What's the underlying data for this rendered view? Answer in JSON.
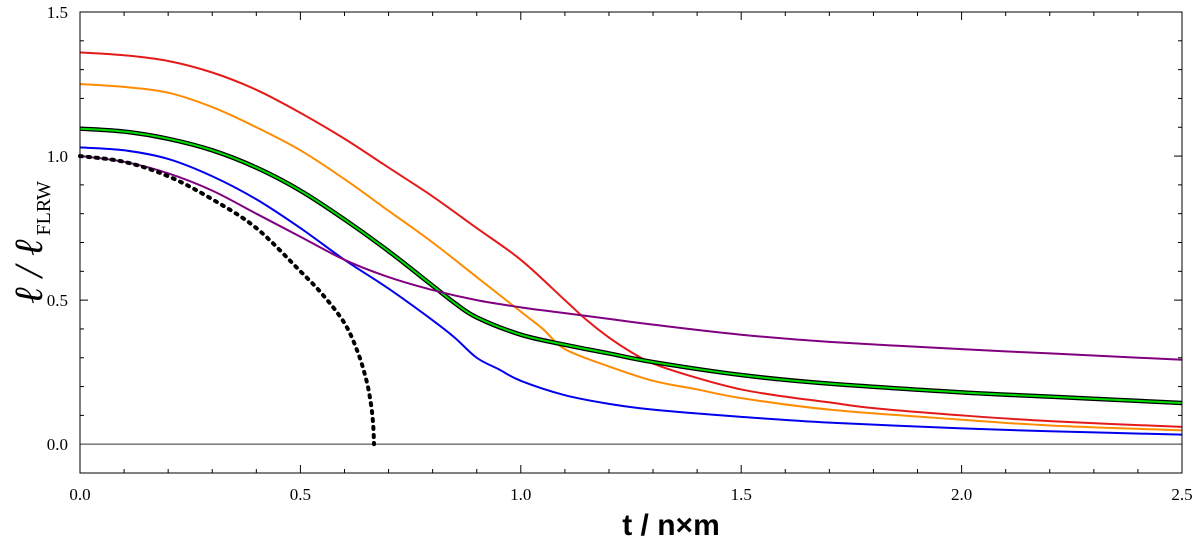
{
  "chart_data": {
    "type": "line",
    "xlabel": "t / n×m",
    "ylabel": {
      "main": "ℓ / ℓ",
      "sub": "FLRW"
    },
    "xlim": [
      0,
      2.5
    ],
    "ylim": [
      -0.1,
      1.5
    ],
    "x_ticks": [
      0.0,
      0.5,
      1.0,
      1.5,
      2.0,
      2.5
    ],
    "x_tick_labels": [
      "0.0",
      "0.5",
      "1.0",
      "1.5",
      "2.0",
      "2.5"
    ],
    "y_ticks": [
      0.0,
      0.5,
      1.0,
      1.5
    ],
    "y_tick_labels": [
      "0.0",
      "0.5",
      "1.0",
      "1.5"
    ],
    "reference_line": {
      "y": 0,
      "color": "#808080"
    },
    "series": [
      {
        "name": "red",
        "color": "#e41a1a",
        "style": "solid",
        "points": [
          [
            0,
            1.36
          ],
          [
            0.1,
            1.35
          ],
          [
            0.2,
            1.33
          ],
          [
            0.3,
            1.29
          ],
          [
            0.4,
            1.23
          ],
          [
            0.5,
            1.15
          ],
          [
            0.6,
            1.06
          ],
          [
            0.7,
            0.96
          ],
          [
            0.8,
            0.86
          ],
          [
            0.9,
            0.75
          ],
          [
            1.0,
            0.64
          ],
          [
            1.1,
            0.5
          ],
          [
            1.15,
            0.43
          ],
          [
            1.2,
            0.37
          ],
          [
            1.25,
            0.32
          ],
          [
            1.3,
            0.28
          ],
          [
            1.4,
            0.23
          ],
          [
            1.5,
            0.19
          ],
          [
            1.6,
            0.165
          ],
          [
            1.7,
            0.145
          ],
          [
            1.8,
            0.125
          ],
          [
            2.0,
            0.1
          ],
          [
            2.2,
            0.08
          ],
          [
            2.5,
            0.06
          ]
        ]
      },
      {
        "name": "orange",
        "color": "#ff8c00",
        "style": "solid",
        "points": [
          [
            0,
            1.25
          ],
          [
            0.1,
            1.24
          ],
          [
            0.2,
            1.22
          ],
          [
            0.3,
            1.17
          ],
          [
            0.4,
            1.1
          ],
          [
            0.5,
            1.02
          ],
          [
            0.6,
            0.92
          ],
          [
            0.7,
            0.81
          ],
          [
            0.8,
            0.7
          ],
          [
            0.9,
            0.58
          ],
          [
            1.0,
            0.46
          ],
          [
            1.05,
            0.4
          ],
          [
            1.1,
            0.33
          ],
          [
            1.2,
            0.27
          ],
          [
            1.3,
            0.22
          ],
          [
            1.4,
            0.19
          ],
          [
            1.5,
            0.16
          ],
          [
            1.7,
            0.12
          ],
          [
            2.0,
            0.085
          ],
          [
            2.2,
            0.065
          ],
          [
            2.5,
            0.048
          ]
        ]
      },
      {
        "name": "green",
        "color": "#00dd00",
        "style": "solid",
        "outline": "#000000",
        "points": [
          [
            0,
            1.095
          ],
          [
            0.1,
            1.085
          ],
          [
            0.2,
            1.06
          ],
          [
            0.3,
            1.02
          ],
          [
            0.4,
            0.96
          ],
          [
            0.5,
            0.88
          ],
          [
            0.6,
            0.78
          ],
          [
            0.7,
            0.67
          ],
          [
            0.8,
            0.55
          ],
          [
            0.85,
            0.49
          ],
          [
            0.9,
            0.44
          ],
          [
            1.0,
            0.38
          ],
          [
            1.1,
            0.345
          ],
          [
            1.2,
            0.315
          ],
          [
            1.3,
            0.285
          ],
          [
            1.5,
            0.24
          ],
          [
            1.7,
            0.21
          ],
          [
            2.0,
            0.18
          ],
          [
            2.2,
            0.165
          ],
          [
            2.5,
            0.143
          ]
        ]
      },
      {
        "name": "blue",
        "color": "#0000ee",
        "style": "solid",
        "points": [
          [
            0,
            1.03
          ],
          [
            0.1,
            1.02
          ],
          [
            0.2,
            0.99
          ],
          [
            0.3,
            0.93
          ],
          [
            0.4,
            0.85
          ],
          [
            0.5,
            0.75
          ],
          [
            0.6,
            0.64
          ],
          [
            0.7,
            0.54
          ],
          [
            0.8,
            0.43
          ],
          [
            0.85,
            0.37
          ],
          [
            0.9,
            0.3
          ],
          [
            0.95,
            0.26
          ],
          [
            1.0,
            0.22
          ],
          [
            1.1,
            0.17
          ],
          [
            1.2,
            0.14
          ],
          [
            1.3,
            0.12
          ],
          [
            1.5,
            0.095
          ],
          [
            1.7,
            0.075
          ],
          [
            2.0,
            0.055
          ],
          [
            2.2,
            0.045
          ],
          [
            2.5,
            0.033
          ]
        ]
      },
      {
        "name": "purple",
        "color": "#800080",
        "style": "solid",
        "points": [
          [
            0,
            1.0
          ],
          [
            0.1,
            0.98
          ],
          [
            0.2,
            0.94
          ],
          [
            0.3,
            0.88
          ],
          [
            0.4,
            0.8
          ],
          [
            0.5,
            0.72
          ],
          [
            0.6,
            0.64
          ],
          [
            0.7,
            0.58
          ],
          [
            0.8,
            0.535
          ],
          [
            0.9,
            0.5
          ],
          [
            1.0,
            0.475
          ],
          [
            1.1,
            0.455
          ],
          [
            1.2,
            0.435
          ],
          [
            1.3,
            0.415
          ],
          [
            1.5,
            0.38
          ],
          [
            1.7,
            0.355
          ],
          [
            2.0,
            0.33
          ],
          [
            2.2,
            0.315
          ],
          [
            2.5,
            0.293
          ]
        ]
      },
      {
        "name": "dotted-reference",
        "color": "#000000",
        "style": "dotted",
        "points": [
          [
            0,
            1.0
          ],
          [
            0.1,
            0.98
          ],
          [
            0.2,
            0.93
          ],
          [
            0.3,
            0.85
          ],
          [
            0.4,
            0.75
          ],
          [
            0.5,
            0.6
          ],
          [
            0.55,
            0.52
          ],
          [
            0.6,
            0.42
          ],
          [
            0.63,
            0.32
          ],
          [
            0.65,
            0.22
          ],
          [
            0.66,
            0.14
          ],
          [
            0.665,
            0.07
          ],
          [
            0.667,
            0.0
          ]
        ]
      }
    ]
  }
}
